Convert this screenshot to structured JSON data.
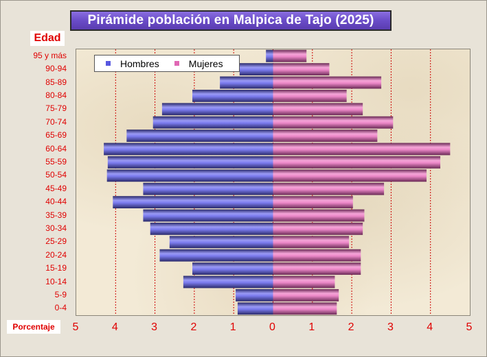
{
  "title": "Pirámide población en Malpica de Tajo (2025)",
  "ylabel": "Edad",
  "xlabel": "Porcentaje",
  "legend": {
    "men_label": "Hombres",
    "women_label": "Mujeres"
  },
  "colors": {
    "men": "#6d6de8",
    "women": "#e070b8",
    "gridline": "#cc0000",
    "text": "#e00000"
  },
  "chart_data": {
    "type": "bar",
    "orientation": "horizontal-population-pyramid",
    "title": "Pirámide población en Malpica de Tajo (2025)",
    "ylabel": "Edad",
    "xlabel": "Porcentaje",
    "xlim": [
      -5,
      5
    ],
    "x_tick_labels": [
      "5",
      "4",
      "3",
      "2",
      "1",
      "0",
      "1",
      "2",
      "3",
      "4",
      "5"
    ],
    "grid": "vertical",
    "legend_position": "top-left",
    "categories": [
      "95 y más",
      "90-94",
      "85-89",
      "80-84",
      "75-79",
      "70-74",
      "65-69",
      "60-64",
      "55-59",
      "50-54",
      "45-49",
      "40-44",
      "35-39",
      "30-34",
      "25-29",
      "20-24",
      "15-19",
      "10-14",
      "5-9",
      "0-4"
    ],
    "series": [
      {
        "name": "Hombres",
        "values": [
          0.18,
          0.85,
          1.35,
          2.05,
          2.82,
          3.05,
          3.72,
          4.3,
          4.2,
          4.22,
          3.3,
          4.07,
          3.3,
          3.12,
          2.63,
          2.88,
          2.05,
          2.28,
          0.95,
          0.9
        ]
      },
      {
        "name": "Mujeres",
        "values": [
          0.85,
          1.43,
          2.75,
          1.87,
          2.28,
          3.05,
          2.65,
          4.5,
          4.25,
          3.9,
          2.82,
          2.03,
          2.32,
          2.28,
          1.93,
          2.23,
          2.23,
          1.57,
          1.67,
          1.62
        ]
      }
    ]
  }
}
